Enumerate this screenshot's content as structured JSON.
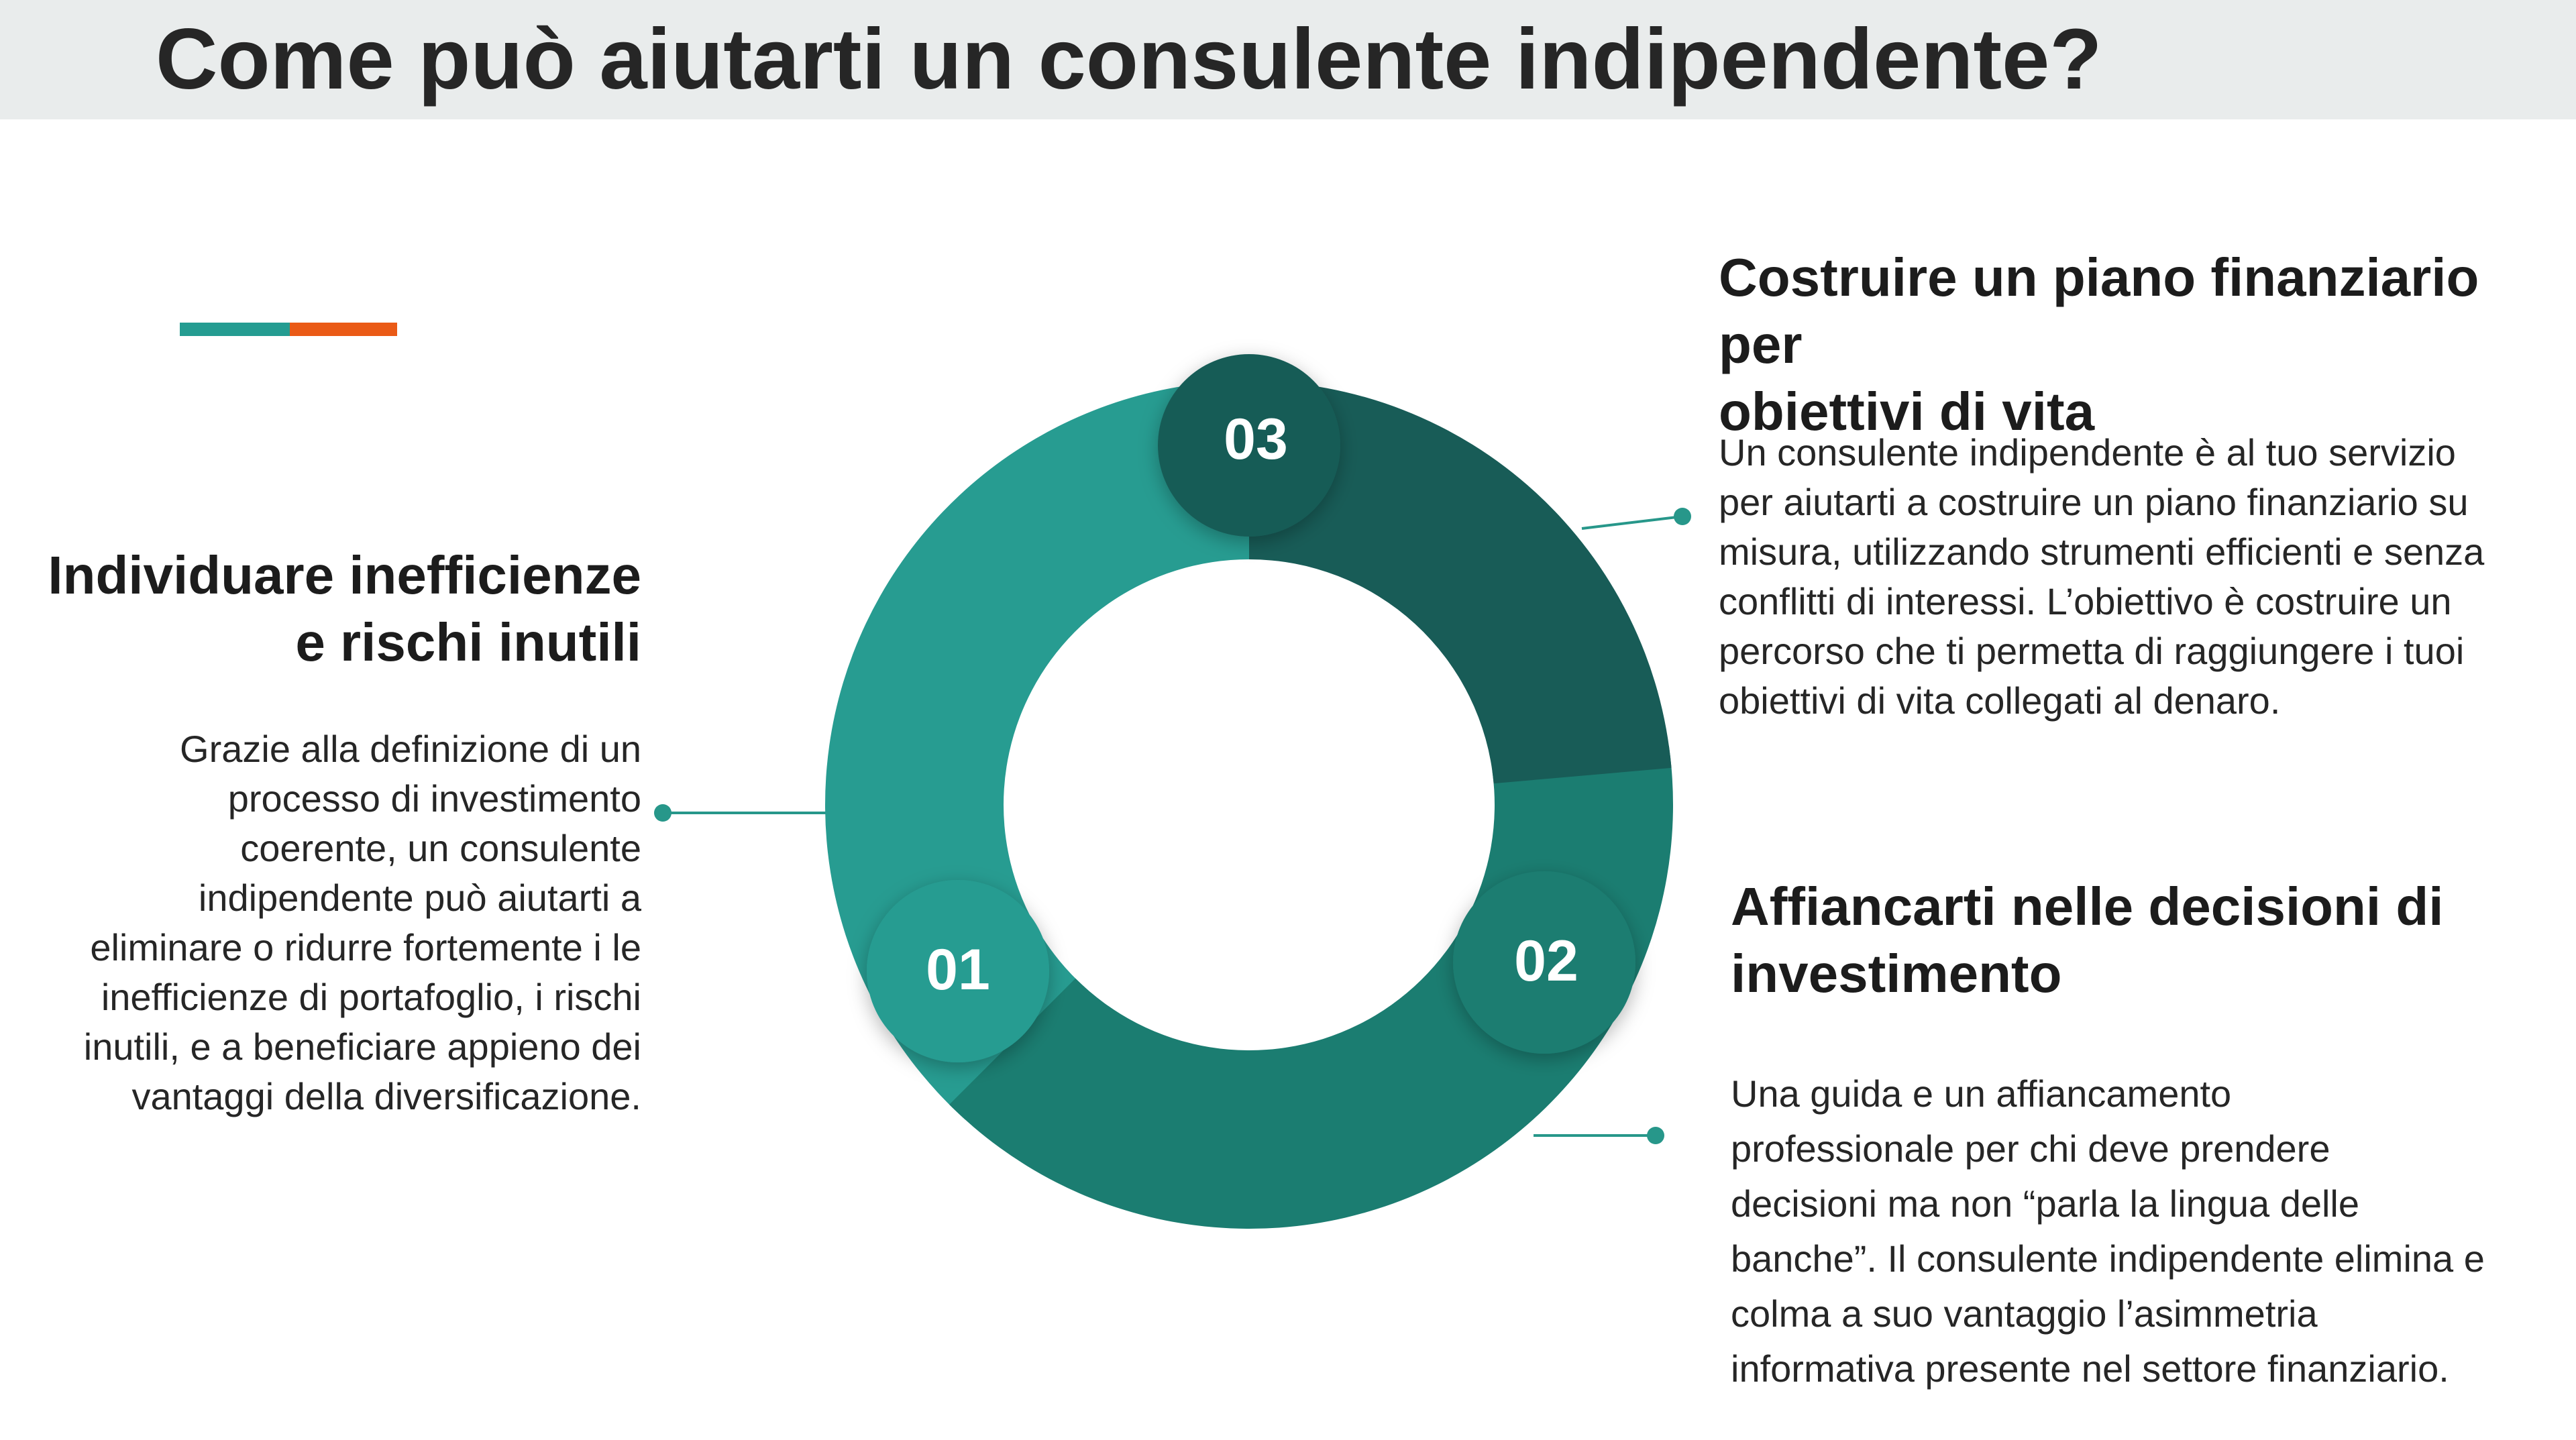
{
  "header": {
    "title": "Come può aiutarti un consulente indipendente?"
  },
  "colors": {
    "header_band": "#e9ecec",
    "accent_teal": "#249c91",
    "accent_orange": "#ea5a16",
    "segment_01": "#279c91",
    "segment_02": "#1b7d71",
    "segment_03": "#185c57",
    "connector": "#27978a"
  },
  "cycle": {
    "steps": [
      {
        "number": "01"
      },
      {
        "number": "02"
      },
      {
        "number": "03"
      }
    ]
  },
  "sections": {
    "left": {
      "heading_lines": [
        "Individuare inefficienze",
        "e rischi inutili"
      ],
      "body_lines": [
        "Grazie alla definizione di un",
        "processo di investimento",
        "coerente, un consulente",
        "indipendente può aiutarti a",
        "eliminare o ridurre fortemente i le",
        "inefficienze di portafoglio, i rischi",
        "inutili, e a beneficiare appieno dei",
        "vantaggi della diversificazione."
      ]
    },
    "top_right": {
      "heading_lines": [
        "Costruire un piano finanziario per",
        "obiettivi di vita"
      ],
      "body_lines": [
        "Un consulente indipendente è al tuo servizio",
        "per aiutarti a costruire un piano finanziario su",
        "misura, utilizzando strumenti efficienti e senza",
        "conflitti di interessi. L’obiettivo è costruire un",
        "percorso che ti permetta di  raggiungere i tuoi",
        "obiettivi di vita collegati al denaro."
      ]
    },
    "bottom_right": {
      "heading_lines": [
        "Affiancarti nelle decisioni di",
        "investimento"
      ],
      "body_lines": [
        "Una guida e un affiancamento",
        "professionale per chi deve prendere",
        "decisioni ma non “parla la lingua delle",
        "banche”. Il consulente indipendente elimina e",
        "colma a suo vantaggio l’asimmetria",
        "informativa presente nel settore finanziario."
      ]
    }
  }
}
